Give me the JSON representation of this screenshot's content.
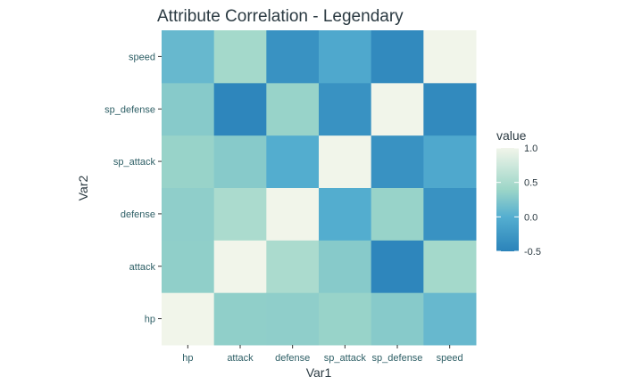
{
  "chart_data": {
    "type": "heatmap",
    "title": "Attribute Correlation - Legendary",
    "xlabel": "Var1",
    "ylabel": "Var2",
    "x_categories": [
      "hp",
      "attack",
      "defense",
      "sp_attack",
      "sp_defense",
      "speed"
    ],
    "y_categories": [
      "hp",
      "attack",
      "defense",
      "sp_attack",
      "sp_defense",
      "speed"
    ],
    "values": [
      [
        1.0,
        0.33,
        0.32,
        0.37,
        0.28,
        0.1
      ],
      [
        0.33,
        1.0,
        0.5,
        0.28,
        -0.46,
        0.45
      ],
      [
        0.32,
        0.5,
        1.0,
        -0.02,
        0.37,
        -0.33
      ],
      [
        0.37,
        0.28,
        -0.02,
        1.0,
        -0.33,
        -0.07
      ],
      [
        0.28,
        -0.46,
        0.37,
        -0.33,
        1.0,
        -0.42
      ],
      [
        0.1,
        0.45,
        -0.33,
        -0.07,
        -0.42,
        1.0
      ]
    ],
    "legend": {
      "title": "value",
      "position": "right",
      "ticks": [
        1.0,
        0.5,
        0.0,
        -0.5
      ],
      "tick_labels": [
        "1.0",
        "0.5",
        "0.0",
        "-0.5"
      ],
      "range": [
        -0.5,
        1.0
      ]
    },
    "colors": {
      "low": "#2b83ba",
      "mid_low": "#54aed0",
      "mid": "#9dd6c8",
      "high": "#f1f5ea",
      "panel_background": "#eef3e7",
      "tick_label_color": "#2e5f66"
    }
  }
}
